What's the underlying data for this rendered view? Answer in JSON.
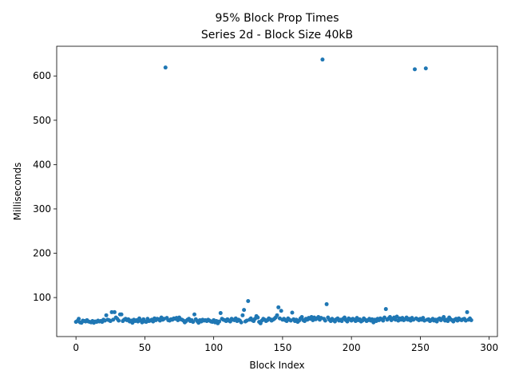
{
  "chart_data": {
    "type": "scatter",
    "title": "95% Block Prop Times",
    "subtitle": "Series 2d - Block Size 40kB",
    "xlabel": "Block Index",
    "ylabel": "Milliseconds",
    "color": "#1f77b4",
    "xlim": [
      -14,
      306
    ],
    "ylim": [
      12,
      667
    ],
    "xticks": [
      0,
      50,
      100,
      150,
      200,
      250,
      300
    ],
    "yticks": [
      100,
      200,
      300,
      400,
      500,
      600
    ],
    "x": [
      0,
      1,
      2,
      3,
      4,
      5,
      6,
      7,
      8,
      9,
      10,
      11,
      12,
      13,
      14,
      15,
      16,
      17,
      18,
      19,
      20,
      21,
      22,
      23,
      24,
      25,
      26,
      27,
      28,
      29,
      30,
      31,
      32,
      33,
      34,
      35,
      36,
      37,
      38,
      39,
      40,
      41,
      42,
      43,
      44,
      45,
      46,
      47,
      48,
      49,
      50,
      51,
      52,
      53,
      54,
      55,
      56,
      57,
      58,
      59,
      60,
      61,
      62,
      63,
      64,
      65,
      66,
      67,
      68,
      69,
      70,
      71,
      72,
      73,
      74,
      75,
      76,
      77,
      78,
      79,
      80,
      81,
      82,
      83,
      84,
      85,
      86,
      87,
      88,
      89,
      90,
      91,
      92,
      93,
      94,
      95,
      96,
      97,
      98,
      99,
      100,
      101,
      102,
      103,
      104,
      105,
      106,
      107,
      108,
      109,
      110,
      111,
      112,
      113,
      114,
      115,
      116,
      117,
      118,
      119,
      120,
      121,
      122,
      123,
      124,
      125,
      126,
      127,
      128,
      129,
      130,
      131,
      132,
      133,
      134,
      135,
      136,
      137,
      138,
      139,
      140,
      141,
      142,
      143,
      144,
      145,
      146,
      147,
      148,
      149,
      150,
      151,
      152,
      153,
      154,
      155,
      156,
      157,
      158,
      159,
      160,
      161,
      162,
      163,
      164,
      165,
      166,
      167,
      168,
      169,
      170,
      171,
      172,
      173,
      174,
      175,
      176,
      177,
      178,
      179,
      180,
      181,
      182,
      183,
      184,
      185,
      186,
      187,
      188,
      189,
      190,
      191,
      192,
      193,
      194,
      195,
      196,
      197,
      198,
      199,
      200,
      201,
      202,
      203,
      204,
      205,
      206,
      207,
      208,
      209,
      210,
      211,
      212,
      213,
      214,
      215,
      216,
      217,
      218,
      219,
      220,
      221,
      222,
      223,
      224,
      225,
      226,
      227,
      228,
      229,
      230,
      231,
      232,
      233,
      234,
      235,
      236,
      237,
      238,
      239,
      240,
      241,
      242,
      243,
      244,
      245,
      246,
      247,
      248,
      249,
      250,
      251,
      252,
      253,
      254,
      255,
      256,
      257,
      258,
      259,
      260,
      261,
      262,
      263,
      264,
      265,
      266,
      267,
      268,
      269,
      270,
      271,
      272,
      273,
      274,
      275,
      276,
      277,
      278,
      279,
      280,
      281,
      282,
      283,
      284,
      285,
      286,
      287
    ],
    "values": [
      45,
      47,
      52,
      44,
      43,
      48,
      47,
      46,
      49,
      46,
      45,
      44,
      47,
      43,
      46,
      45,
      48,
      46,
      47,
      45,
      50,
      48,
      60,
      50,
      49,
      47,
      67,
      50,
      67,
      55,
      52,
      48,
      62,
      62,
      47,
      50,
      52,
      49,
      51,
      46,
      48,
      43,
      50,
      47,
      49,
      46,
      53,
      48,
      44,
      51,
      46,
      45,
      52,
      47,
      48,
      50,
      46,
      53,
      49,
      52,
      51,
      48,
      55,
      50,
      52,
      619,
      54,
      49,
      48,
      51,
      50,
      53,
      52,
      54,
      49,
      55,
      51,
      50,
      48,
      44,
      47,
      50,
      52,
      47,
      49,
      45,
      62,
      51,
      47,
      43,
      49,
      46,
      50,
      48,
      49,
      47,
      50,
      48,
      46,
      45,
      49,
      44,
      47,
      42,
      46,
      65,
      52,
      50,
      49,
      47,
      51,
      48,
      46,
      52,
      50,
      49,
      53,
      47,
      50,
      48,
      44,
      60,
      72,
      46,
      48,
      92,
      50,
      53,
      49,
      47,
      52,
      58,
      55,
      45,
      42,
      48,
      52,
      50,
      47,
      49,
      53,
      51,
      48,
      50,
      52,
      55,
      60,
      78,
      53,
      70,
      50,
      52,
      49,
      47,
      53,
      50,
      48,
      66,
      51,
      47,
      50,
      45,
      48,
      53,
      56,
      49,
      47,
      52,
      50,
      54,
      52,
      56,
      49,
      55,
      51,
      53,
      56,
      50,
      54,
      637,
      52,
      48,
      85,
      55,
      50,
      47,
      52,
      49,
      46,
      51,
      53,
      48,
      50,
      47,
      52,
      55,
      49,
      46,
      53,
      51,
      48,
      52,
      50,
      47,
      54,
      49,
      51,
      46,
      48,
      53,
      50,
      47,
      49,
      52,
      48,
      51,
      44,
      50,
      47,
      52,
      49,
      53,
      51,
      48,
      55,
      74,
      50,
      53,
      56,
      49,
      52,
      55,
      50,
      57,
      48,
      53,
      50,
      54,
      49,
      51,
      55,
      50,
      52,
      48,
      54,
      50,
      615,
      53,
      51,
      49,
      52,
      50,
      54,
      48,
      617,
      50,
      51,
      47,
      49,
      52,
      48,
      50,
      46,
      51,
      53,
      49,
      52,
      56,
      48,
      50,
      47,
      55,
      51,
      49,
      46,
      50,
      52,
      48,
      53,
      50,
      49,
      51,
      52,
      48,
      67,
      50,
      53,
      49
    ]
  }
}
